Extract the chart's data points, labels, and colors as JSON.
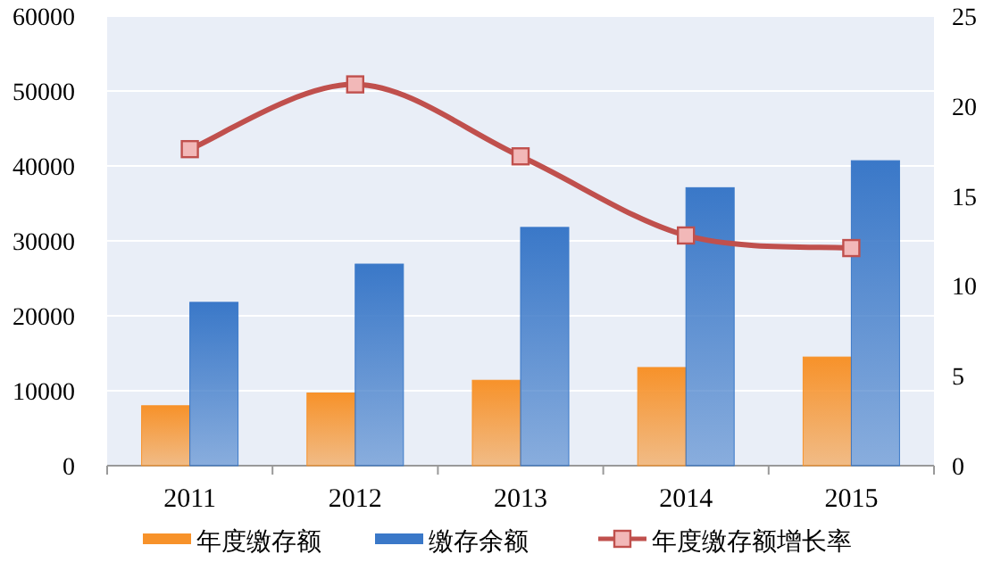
{
  "chart_data": {
    "type": "bar",
    "categories": [
      "2011",
      "2012",
      "2013",
      "2014",
      "2015"
    ],
    "series": [
      {
        "name": "年度缴存额",
        "color": "#f7922a",
        "values": [
          8000,
          9700,
          11400,
          13100,
          14500
        ]
      },
      {
        "name": "缴存余额",
        "color": "#3a78c8",
        "values": [
          21800,
          26900,
          31800,
          37100,
          40700
        ]
      },
      {
        "name": "年度缴存额增长率",
        "type": "line",
        "axis": "y2",
        "color": "#c0504d",
        "marker": "square",
        "values": [
          17.6,
          21.2,
          17.2,
          12.8,
          12.1
        ]
      }
    ],
    "ylim": [
      0,
      60000
    ],
    "yticks": [
      0,
      10000,
      20000,
      30000,
      40000,
      50000,
      60000
    ],
    "y2lim": [
      0,
      25
    ],
    "y2ticks": [
      0,
      5,
      10,
      15,
      20,
      25
    ],
    "grid": "y",
    "legend": "bottom"
  }
}
